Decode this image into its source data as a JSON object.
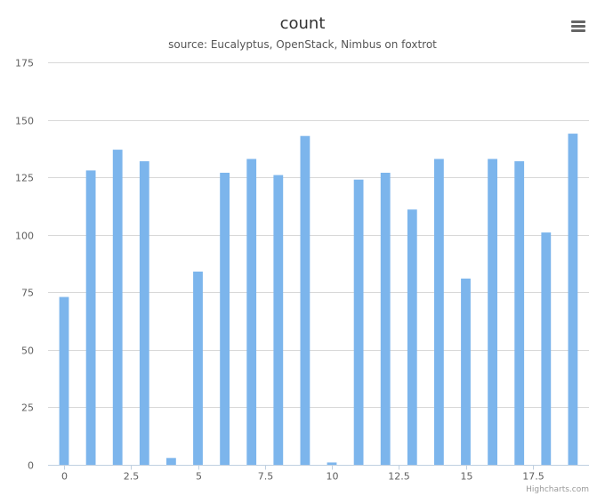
{
  "chart_data": {
    "type": "bar",
    "title": "count",
    "subtitle": "source: Eucalyptus, OpenStack, Nimbus on foxtrot",
    "x": [
      0,
      1,
      2,
      3,
      4,
      5,
      6,
      7,
      8,
      9,
      10,
      11,
      12,
      13,
      14,
      15,
      16,
      17,
      18,
      19
    ],
    "values": [
      73,
      128,
      137,
      132,
      3,
      84,
      127,
      133,
      126,
      143,
      1,
      124,
      127,
      111,
      133,
      81,
      133,
      132,
      101,
      144
    ],
    "xlim": [
      -0.6,
      19.6
    ],
    "ylim": [
      0,
      175
    ],
    "x_ticks": [
      0,
      2.5,
      5,
      7.5,
      10,
      12.5,
      15,
      17.5
    ],
    "x_tick_labels": [
      "0",
      "2.5",
      "5",
      "7.5",
      "10",
      "12.5",
      "15",
      "17.5"
    ],
    "y_ticks": [
      0,
      25,
      50,
      75,
      100,
      125,
      150,
      175
    ],
    "y_tick_labels": [
      "0",
      "25",
      "50",
      "75",
      "100",
      "125",
      "150",
      "175"
    ],
    "bar_color": "#7cb5ec",
    "grid": true,
    "legend": "none"
  },
  "credits": "Highcharts.com",
  "menu_icon": "hamburger-menu-icon",
  "colors": {
    "bar": "#7cb5ec",
    "grid": "#d8d8d8",
    "axis": "#c0d0e0",
    "text": "#333333",
    "menu": "#666666"
  }
}
